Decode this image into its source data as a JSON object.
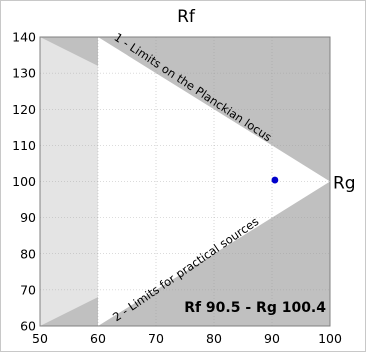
{
  "chart_data": {
    "type": "scatter",
    "x_axis_label": "Rf",
    "y_axis_label": "Rg",
    "xlim": [
      50,
      100
    ],
    "ylim": [
      60,
      140
    ],
    "x_ticks": [
      50,
      60,
      70,
      80,
      90,
      100
    ],
    "y_ticks": [
      60,
      70,
      80,
      90,
      100,
      110,
      120,
      130,
      140
    ],
    "grid": true,
    "point": {
      "x": 90.5,
      "y": 100.4,
      "color": "#0000cc"
    },
    "result_label": "Rf 90.5 - Rg 100.4",
    "annotations": [
      {
        "text": "1 - Limits on the Planckian locus"
      },
      {
        "text": "2 - Limits for practical sources"
      }
    ],
    "regions": {
      "outer_color": "#c0c0c0",
      "planckian_color": "#e4e4e4",
      "practical_color": "#ffffff",
      "planckian_limit": [
        [
          50,
          140
        ],
        [
          100,
          100
        ],
        [
          50,
          60
        ]
      ],
      "practical_limit": [
        [
          60,
          140
        ],
        [
          100,
          100
        ],
        [
          60,
          60
        ]
      ]
    }
  }
}
